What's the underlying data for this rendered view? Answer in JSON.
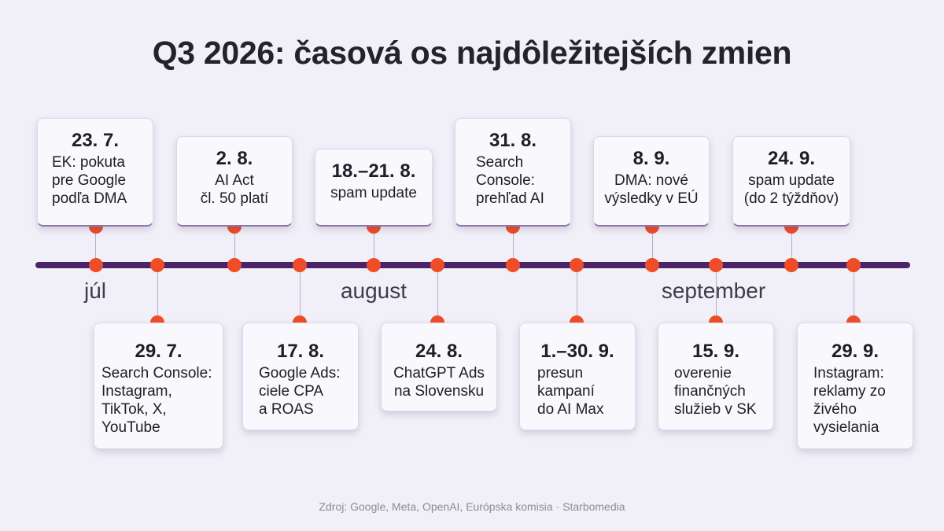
{
  "title": "Q3 2026: časová os najdôležitejších zmien",
  "months": [
    "júl",
    "august",
    "september"
  ],
  "events_top": [
    {
      "date": "23. 7.",
      "text": "EK: pokuta\npre Google\npodľa DMA"
    },
    {
      "date": "2. 8.",
      "text": "AI Act\nčl. 50 platí"
    },
    {
      "date": "18.–21. 8.",
      "text": "spam update"
    },
    {
      "date": "31. 8.",
      "text": "Search\nConsole:\nprehľad AI"
    },
    {
      "date": "8. 9.",
      "text": "DMA: nové\nvýsledky v EÚ"
    },
    {
      "date": "24. 9.",
      "text": "spam update\n(do 2 týždňov)"
    }
  ],
  "events_bottom": [
    {
      "date": "29. 7.",
      "text": "Search Console:\nInstagram,\nTikTok, X,\nYouTube"
    },
    {
      "date": "17. 8.",
      "text": "Google Ads:\nciele CPA\na ROAS"
    },
    {
      "date": "24. 8.",
      "text": "ChatGPT Ads\nna Slovensku"
    },
    {
      "date": "1.–30. 9.",
      "text": "presun\nkampaní\ndo AI Max"
    },
    {
      "date": "15. 9.",
      "text": "overenie\nfinančných\nslužieb v SK"
    },
    {
      "date": "29. 9.",
      "text": "Instagram:\nreklamy zo\nživého\nvysielania"
    }
  ],
  "source": "Zdroj: Google, Meta, OpenAI, Európska komisia · Starbomedia",
  "colors": {
    "axis": "#4b2366",
    "dot": "#ef4d27",
    "background": "#f1eff7"
  }
}
